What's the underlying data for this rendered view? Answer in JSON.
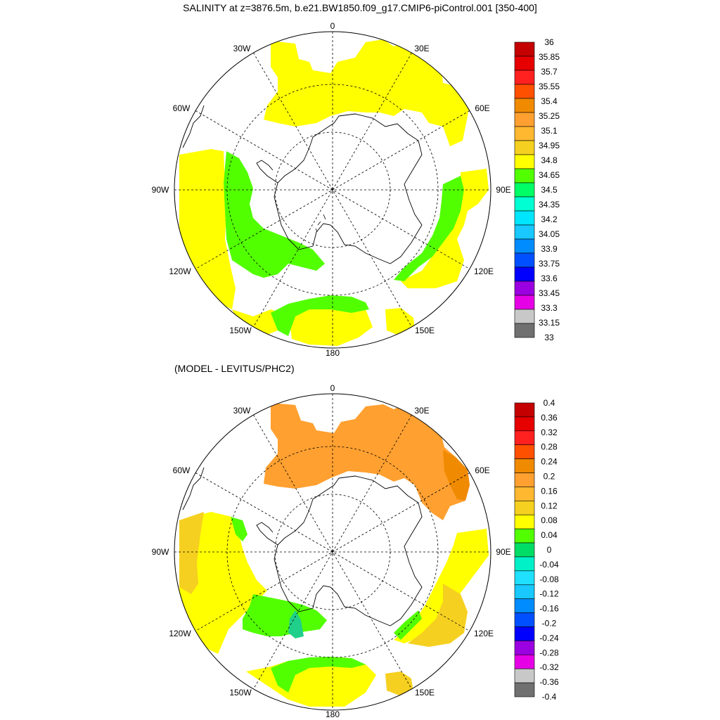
{
  "panels": [
    {
      "title": "SALINITY at z=3876.5m, b.e21.BW1850.f09_g17.CMIP6-piControl.001 [350-400]",
      "longitude_labels": [
        "0",
        "30E",
        "60E",
        "90E",
        "120E",
        "150E",
        "180",
        "150W",
        "120W",
        "90W",
        "60W",
        "30W"
      ],
      "colorbar_labels": [
        "36",
        "35.85",
        "35.7",
        "35.55",
        "35.4",
        "35.25",
        "35.1",
        "34.95",
        "34.8",
        "34.65",
        "34.5",
        "34.35",
        "34.2",
        "34.05",
        "33.9",
        "33.75",
        "33.6",
        "33.45",
        "33.3",
        "33.15",
        "33"
      ],
      "colorbar_colors": [
        "#c40000",
        "#e60000",
        "#ff2020",
        "#ff5000",
        "#f08a00",
        "#ffa030",
        "#ffb830",
        "#f5d020",
        "#ffff00",
        "#52ff00",
        "#00ff66",
        "#00ffd2",
        "#00e6ff",
        "#18c8ff",
        "#008cff",
        "#0050ff",
        "#0000ff",
        "#9a00e0",
        "#e600e6",
        "#c8c8c8",
        "#707070"
      ],
      "regions": [
        {
          "color": "#ffff00",
          "value_range": "34.8-34.95",
          "label": "yellow"
        },
        {
          "color": "#52ff00",
          "value_range": "34.65-34.8",
          "label": "green"
        }
      ]
    },
    {
      "title": "(MODEL - LEVITUS/PHC2)",
      "longitude_labels": [
        "0",
        "30E",
        "60E",
        "90E",
        "120E",
        "150E",
        "180",
        "150W",
        "120W",
        "90W",
        "60W",
        "30W"
      ],
      "colorbar_labels": [
        "0.4",
        "0.36",
        "0.32",
        "0.28",
        "0.24",
        "0.2",
        "0.16",
        "0.12",
        "0.08",
        "0.04",
        "0",
        "-0.04",
        "-0.08",
        "-0.12",
        "-0.16",
        "-0.2",
        "-0.24",
        "-0.28",
        "-0.32",
        "-0.36",
        "-0.4"
      ],
      "colorbar_colors": [
        "#c40000",
        "#e60000",
        "#ff2020",
        "#ff5000",
        "#f08a00",
        "#ffa030",
        "#ffb830",
        "#f5d020",
        "#ffff00",
        "#52ff00",
        "#00dd66",
        "#00f0c8",
        "#20e0ff",
        "#18c8ff",
        "#008cff",
        "#0050ff",
        "#0000ff",
        "#9a00e0",
        "#e600e6",
        "#c8c8c8",
        "#707070"
      ],
      "regions": [
        {
          "color": "#ffa030",
          "label": "orange"
        },
        {
          "color": "#ffff00",
          "label": "yellow"
        },
        {
          "color": "#f5d020",
          "label": "light-orange"
        },
        {
          "color": "#52ff00",
          "label": "green"
        },
        {
          "color": "#20d08a",
          "label": "teal"
        }
      ]
    }
  ],
  "colors": {
    "land_outline": "#000000",
    "grid": "#000000",
    "background": "#ffffff"
  }
}
